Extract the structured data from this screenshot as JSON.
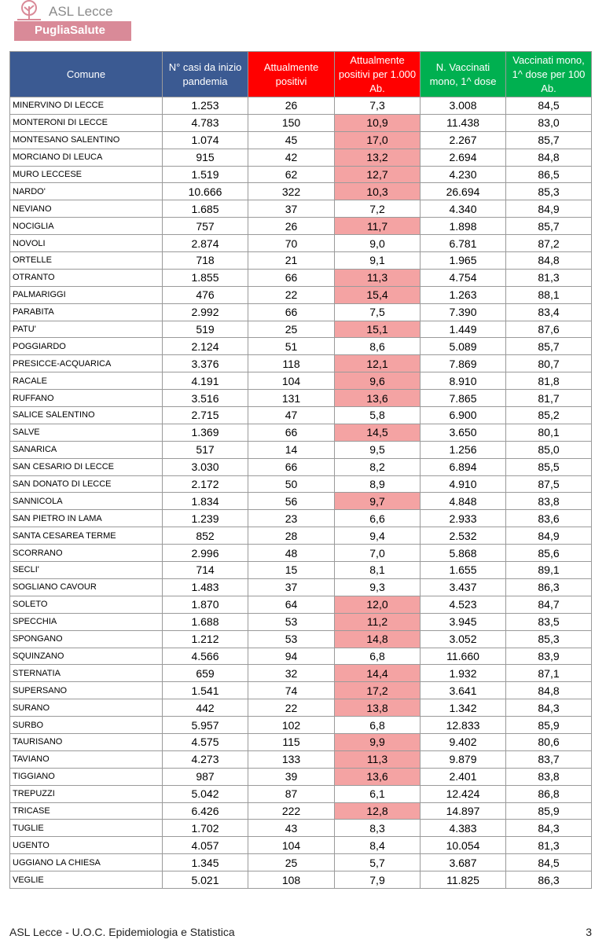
{
  "header": {
    "logo_title": "ASL Lecce",
    "logo_subtitle": "PugliaSalute"
  },
  "table": {
    "columns": [
      "Comune",
      "N° casi da inizio pandemia",
      "Attualmente positivi",
      "Attualmente positivi per 1.000 Ab.",
      "N. Vaccinati mono, 1^ dose",
      "Vaccinati mono, 1^ dose per 100 Ab."
    ],
    "highlight_color": "#f4a3a3",
    "highlighted_column": 3,
    "highlighted_rows": [
      1,
      2,
      3,
      4,
      5,
      7,
      10,
      11,
      13,
      15,
      16,
      17,
      19,
      23,
      29,
      30,
      31,
      33,
      34,
      35,
      37,
      38,
      39,
      41
    ],
    "rows": [
      [
        "MINERVINO DI LECCE",
        "1.253",
        "26",
        "7,3",
        "3.008",
        "84,5"
      ],
      [
        "MONTERONI DI LECCE",
        "4.783",
        "150",
        "10,9",
        "11.438",
        "83,0"
      ],
      [
        "MONTESANO SALENTINO",
        "1.074",
        "45",
        "17,0",
        "2.267",
        "85,7"
      ],
      [
        "MORCIANO DI LEUCA",
        "915",
        "42",
        "13,2",
        "2.694",
        "84,8"
      ],
      [
        "MURO LECCESE",
        "1.519",
        "62",
        "12,7",
        "4.230",
        "86,5"
      ],
      [
        "NARDO'",
        "10.666",
        "322",
        "10,3",
        "26.694",
        "85,3"
      ],
      [
        "NEVIANO",
        "1.685",
        "37",
        "7,2",
        "4.340",
        "84,9"
      ],
      [
        "NOCIGLIA",
        "757",
        "26",
        "11,7",
        "1.898",
        "85,7"
      ],
      [
        "NOVOLI",
        "2.874",
        "70",
        "9,0",
        "6.781",
        "87,2"
      ],
      [
        "ORTELLE",
        "718",
        "21",
        "9,1",
        "1.965",
        "84,8"
      ],
      [
        "OTRANTO",
        "1.855",
        "66",
        "11,3",
        "4.754",
        "81,3"
      ],
      [
        "PALMARIGGI",
        "476",
        "22",
        "15,4",
        "1.263",
        "88,1"
      ],
      [
        "PARABITA",
        "2.992",
        "66",
        "7,5",
        "7.390",
        "83,4"
      ],
      [
        "PATU'",
        "519",
        "25",
        "15,1",
        "1.449",
        "87,6"
      ],
      [
        "POGGIARDO",
        "2.124",
        "51",
        "8,6",
        "5.089",
        "85,7"
      ],
      [
        "PRESICCE-ACQUARICA",
        "3.376",
        "118",
        "12,1",
        "7.869",
        "80,7"
      ],
      [
        "RACALE",
        "4.191",
        "104",
        "9,6",
        "8.910",
        "81,8"
      ],
      [
        "RUFFANO",
        "3.516",
        "131",
        "13,6",
        "7.865",
        "81,7"
      ],
      [
        "SALICE SALENTINO",
        "2.715",
        "47",
        "5,8",
        "6.900",
        "85,2"
      ],
      [
        "SALVE",
        "1.369",
        "66",
        "14,5",
        "3.650",
        "80,1"
      ],
      [
        "SANARICA",
        "517",
        "14",
        "9,5",
        "1.256",
        "85,0"
      ],
      [
        "SAN CESARIO DI LECCE",
        "3.030",
        "66",
        "8,2",
        "6.894",
        "85,5"
      ],
      [
        "SAN DONATO DI LECCE",
        "2.172",
        "50",
        "8,9",
        "4.910",
        "87,5"
      ],
      [
        "SANNICOLA",
        "1.834",
        "56",
        "9,7",
        "4.848",
        "83,8"
      ],
      [
        "SAN PIETRO IN LAMA",
        "1.239",
        "23",
        "6,6",
        "2.933",
        "83,6"
      ],
      [
        "SANTA CESAREA TERME",
        "852",
        "28",
        "9,4",
        "2.532",
        "84,9"
      ],
      [
        "SCORRANO",
        "2.996",
        "48",
        "7,0",
        "5.868",
        "85,6"
      ],
      [
        "SECLI'",
        "714",
        "15",
        "8,1",
        "1.655",
        "89,1"
      ],
      [
        "SOGLIANO CAVOUR",
        "1.483",
        "37",
        "9,3",
        "3.437",
        "86,3"
      ],
      [
        "SOLETO",
        "1.870",
        "64",
        "12,0",
        "4.523",
        "84,7"
      ],
      [
        "SPECCHIA",
        "1.688",
        "53",
        "11,2",
        "3.945",
        "83,5"
      ],
      [
        "SPONGANO",
        "1.212",
        "53",
        "14,8",
        "3.052",
        "85,3"
      ],
      [
        "SQUINZANO",
        "4.566",
        "94",
        "6,8",
        "11.660",
        "83,9"
      ],
      [
        "STERNATIA",
        "659",
        "32",
        "14,4",
        "1.932",
        "87,1"
      ],
      [
        "SUPERSANO",
        "1.541",
        "74",
        "17,2",
        "3.641",
        "84,8"
      ],
      [
        "SURANO",
        "442",
        "22",
        "13,8",
        "1.342",
        "84,3"
      ],
      [
        "SURBO",
        "5.957",
        "102",
        "6,8",
        "12.833",
        "85,9"
      ],
      [
        "TAURISANO",
        "4.575",
        "115",
        "9,9",
        "9.402",
        "80,6"
      ],
      [
        "TAVIANO",
        "4.273",
        "133",
        "11,3",
        "9.879",
        "83,7"
      ],
      [
        "TIGGIANO",
        "987",
        "39",
        "13,6",
        "2.401",
        "83,8"
      ],
      [
        "TREPUZZI",
        "5.042",
        "87",
        "6,1",
        "12.424",
        "86,8"
      ],
      [
        "TRICASE",
        "6.426",
        "222",
        "12,8",
        "14.897",
        "85,9"
      ],
      [
        "TUGLIE",
        "1.702",
        "43",
        "8,3",
        "4.383",
        "84,3"
      ],
      [
        "UGENTO",
        "4.057",
        "104",
        "8,4",
        "10.054",
        "81,3"
      ],
      [
        "UGGIANO LA CHIESA",
        "1.345",
        "25",
        "5,7",
        "3.687",
        "84,5"
      ],
      [
        "VEGLIE",
        "5.021",
        "108",
        "7,9",
        "11.825",
        "86,3"
      ]
    ]
  },
  "footer": {
    "text": "ASL Lecce - U.O.C. Epidemiologia e Statistica",
    "page": "3"
  }
}
